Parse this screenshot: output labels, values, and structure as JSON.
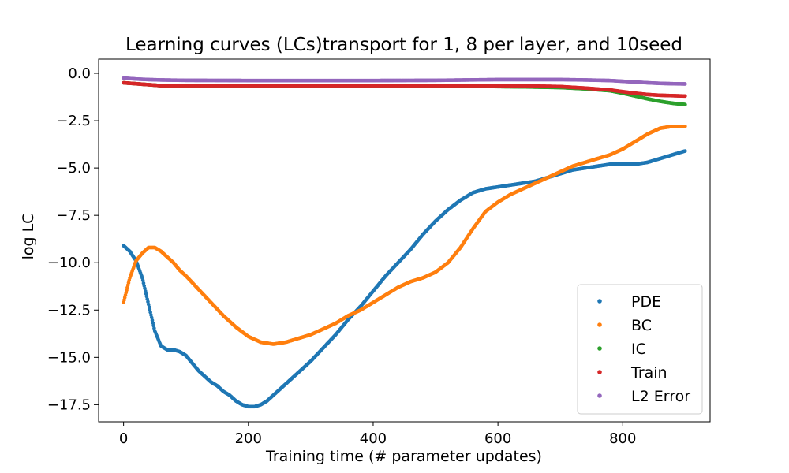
{
  "chart_data": {
    "type": "scatter",
    "title": "Learning curves (LCs)transport for 1, 8 per layer, and 10seed",
    "xlabel": "Training time (# parameter updates)",
    "ylabel": "log LC",
    "xlim": [
      -40,
      940
    ],
    "ylim": [
      -18.4,
      0.75
    ],
    "xticks": [
      0,
      200,
      400,
      600,
      800
    ],
    "xtick_labels": [
      "0",
      "200",
      "400",
      "600",
      "800"
    ],
    "yticks": [
      0.0,
      -2.5,
      -5.0,
      -7.5,
      -10.0,
      -12.5,
      -15.0,
      -17.5
    ],
    "ytick_labels": [
      "0.0",
      "−2.5",
      "−5.0",
      "−7.5",
      "−10.0",
      "−12.5",
      "−15.0",
      "−17.5"
    ],
    "grid": false,
    "legend_position": "lower-right",
    "series": [
      {
        "name": "PDE",
        "color": "#1f77b4",
        "x": [
          0,
          10,
          20,
          30,
          40,
          50,
          60,
          70,
          80,
          90,
          100,
          110,
          120,
          130,
          140,
          150,
          160,
          170,
          180,
          190,
          200,
          210,
          220,
          230,
          240,
          250,
          260,
          270,
          280,
          290,
          300,
          320,
          340,
          360,
          380,
          400,
          420,
          440,
          460,
          480,
          500,
          520,
          540,
          560,
          580,
          600,
          620,
          640,
          660,
          680,
          700,
          720,
          740,
          760,
          780,
          800,
          820,
          840,
          860,
          880,
          900
        ],
        "y": [
          -9.1,
          -9.4,
          -9.9,
          -10.8,
          -12.2,
          -13.6,
          -14.4,
          -14.6,
          -14.6,
          -14.7,
          -14.9,
          -15.3,
          -15.7,
          -16.0,
          -16.3,
          -16.5,
          -16.8,
          -17.0,
          -17.3,
          -17.5,
          -17.6,
          -17.6,
          -17.5,
          -17.3,
          -17.0,
          -16.7,
          -16.4,
          -16.1,
          -15.8,
          -15.5,
          -15.2,
          -14.5,
          -13.8,
          -13.0,
          -12.3,
          -11.5,
          -10.7,
          -10.0,
          -9.3,
          -8.5,
          -7.8,
          -7.2,
          -6.7,
          -6.3,
          -6.1,
          -6.0,
          -5.9,
          -5.8,
          -5.7,
          -5.5,
          -5.3,
          -5.1,
          -5.0,
          -4.9,
          -4.8,
          -4.8,
          -4.8,
          -4.7,
          -4.5,
          -4.3,
          -4.1
        ]
      },
      {
        "name": "BC",
        "color": "#ff7f0e",
        "x": [
          0,
          10,
          20,
          30,
          40,
          50,
          60,
          70,
          80,
          90,
          100,
          120,
          140,
          160,
          180,
          200,
          220,
          240,
          260,
          280,
          300,
          320,
          340,
          360,
          380,
          400,
          420,
          440,
          460,
          480,
          500,
          520,
          540,
          560,
          580,
          600,
          620,
          640,
          660,
          680,
          700,
          720,
          740,
          760,
          780,
          800,
          820,
          840,
          860,
          880,
          900
        ],
        "y": [
          -12.1,
          -10.8,
          -9.9,
          -9.5,
          -9.2,
          -9.2,
          -9.4,
          -9.7,
          -10.0,
          -10.4,
          -10.7,
          -11.4,
          -12.1,
          -12.8,
          -13.4,
          -13.9,
          -14.2,
          -14.3,
          -14.2,
          -14.0,
          -13.8,
          -13.5,
          -13.2,
          -12.8,
          -12.5,
          -12.1,
          -11.7,
          -11.3,
          -11.0,
          -10.8,
          -10.5,
          -10.0,
          -9.2,
          -8.2,
          -7.3,
          -6.8,
          -6.4,
          -6.1,
          -5.8,
          -5.5,
          -5.2,
          -4.9,
          -4.7,
          -4.5,
          -4.3,
          -4.0,
          -3.6,
          -3.2,
          -2.9,
          -2.8,
          -2.8
        ]
      },
      {
        "name": "IC",
        "color": "#2ca02c",
        "x": [
          0,
          20,
          40,
          60,
          100,
          200,
          300,
          400,
          500,
          600,
          650,
          700,
          740,
          780,
          800,
          820,
          840,
          860,
          880,
          900
        ],
        "y": [
          -0.5,
          -0.55,
          -0.6,
          -0.65,
          -0.65,
          -0.65,
          -0.65,
          -0.65,
          -0.65,
          -0.7,
          -0.72,
          -0.75,
          -0.82,
          -0.92,
          -1.05,
          -1.2,
          -1.35,
          -1.48,
          -1.58,
          -1.65
        ]
      },
      {
        "name": "Train",
        "color": "#d62728",
        "x": [
          0,
          20,
          40,
          60,
          100,
          200,
          300,
          400,
          500,
          600,
          650,
          700,
          740,
          780,
          800,
          820,
          840,
          860,
          880,
          900
        ],
        "y": [
          -0.5,
          -0.55,
          -0.6,
          -0.65,
          -0.65,
          -0.65,
          -0.65,
          -0.65,
          -0.65,
          -0.65,
          -0.67,
          -0.7,
          -0.78,
          -0.88,
          -0.97,
          -1.05,
          -1.12,
          -1.16,
          -1.18,
          -1.2
        ]
      },
      {
        "name": "L2 Error",
        "color": "#9467bd",
        "x": [
          0,
          20,
          40,
          60,
          100,
          200,
          300,
          400,
          500,
          600,
          650,
          700,
          740,
          780,
          800,
          820,
          840,
          860,
          880,
          900
        ],
        "y": [
          -0.25,
          -0.3,
          -0.33,
          -0.35,
          -0.37,
          -0.38,
          -0.38,
          -0.38,
          -0.37,
          -0.33,
          -0.33,
          -0.33,
          -0.35,
          -0.38,
          -0.42,
          -0.46,
          -0.5,
          -0.53,
          -0.55,
          -0.56
        ]
      }
    ]
  }
}
